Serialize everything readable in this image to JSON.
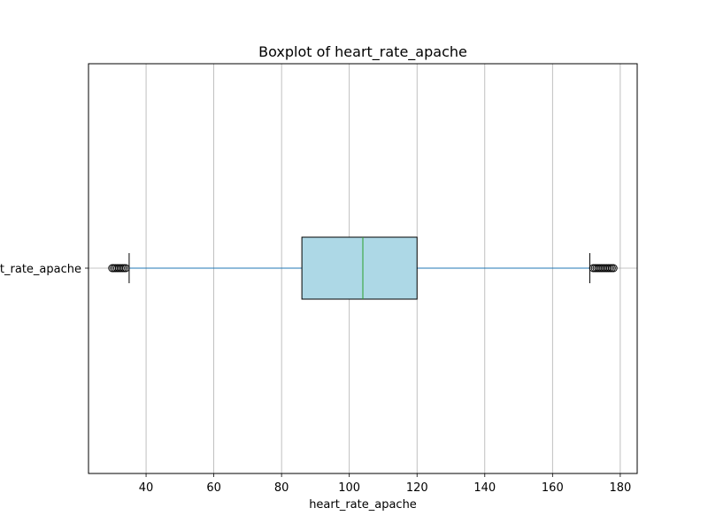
{
  "chart_data": {
    "type": "boxplot",
    "orientation": "horizontal",
    "title": "Boxplot of heart_rate_apache",
    "xlabel": "heart_rate_apache",
    "ylabel": "",
    "category": "heart_rate_apache",
    "xlim": [
      23,
      185
    ],
    "xticks": [
      40,
      60,
      80,
      100,
      120,
      140,
      160,
      180
    ],
    "grid": {
      "x": true,
      "y": true
    },
    "box": {
      "whisker_low": 35,
      "q1": 86,
      "median": 104,
      "q3": 120,
      "whisker_high": 171
    },
    "outliers_low": [
      30,
      30.5,
      31,
      31.5,
      32,
      32.5,
      33,
      33.5,
      34
    ],
    "outliers_high": [
      172,
      172.5,
      173,
      173.5,
      174,
      174.5,
      175,
      175.5,
      176,
      176.5,
      177,
      177.5,
      178
    ],
    "colors": {
      "box_fill": "#add8e6",
      "box_edge": "#000000",
      "median": "#2ca02c",
      "whisker": "#1f77b4",
      "grid": "#b0b0b0"
    }
  }
}
